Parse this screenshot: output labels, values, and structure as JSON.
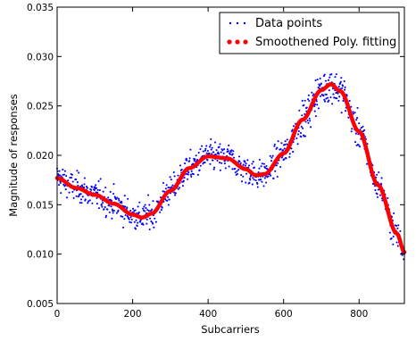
{
  "chart_data": {
    "type": "scatter",
    "title": "",
    "xlabel": "Subcarriers",
    "ylabel": "Magnitude of responses",
    "xlim": [
      0,
      920
    ],
    "ylim": [
      0.005,
      0.035
    ],
    "x_ticks": [
      0,
      200,
      400,
      600,
      800
    ],
    "x_tick_labels": [
      "0",
      "200",
      "400",
      "600",
      "800"
    ],
    "y_ticks": [
      0.005,
      0.01,
      0.015,
      0.02,
      0.025,
      0.03,
      0.035
    ],
    "y_tick_labels": [
      "0.005",
      "0.010",
      "0.015",
      "0.020",
      "0.025",
      "0.030",
      "0.035"
    ],
    "grid": false,
    "legend": {
      "placement": "top-right"
    },
    "series": [
      {
        "name": "Data points",
        "kind": "scatter",
        "color": "#0000ff",
        "noise_sd": 0.0012,
        "point_count": 920,
        "x_range": [
          0,
          920
        ]
      },
      {
        "name": "Smoothened Poly. fitting",
        "kind": "line",
        "color": "#ff0000",
        "x": [
          0,
          50,
          100,
          150,
          200,
          225,
          250,
          300,
          350,
          400,
          450,
          500,
          525,
          550,
          600,
          650,
          700,
          725,
          750,
          800,
          850,
          900,
          920
        ],
        "y": [
          0.0177,
          0.0167,
          0.016,
          0.0151,
          0.014,
          0.0137,
          0.0141,
          0.0164,
          0.0187,
          0.0199,
          0.0197,
          0.0186,
          0.018,
          0.0181,
          0.0202,
          0.0236,
          0.0266,
          0.0272,
          0.0265,
          0.0224,
          0.017,
          0.0121,
          0.0102
        ]
      }
    ]
  }
}
